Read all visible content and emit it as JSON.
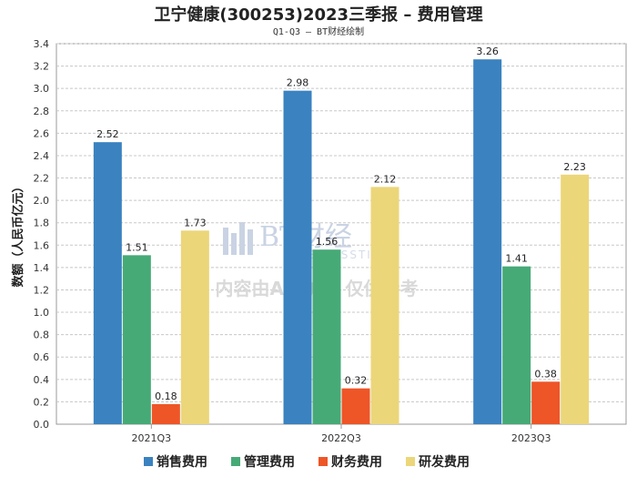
{
  "chart_data": {
    "type": "bar",
    "title": "卫宁健康(300253)2023三季报 – 费用管理",
    "subtitle": "Q1-Q3 – BT财经绘制",
    "ylabel": "数额（人民币亿元）",
    "xlabel": "",
    "ylim": [
      0,
      3.4
    ],
    "yticks": [
      "0.0",
      "0.2",
      "0.4",
      "0.6",
      "0.8",
      "1.0",
      "1.2",
      "1.4",
      "1.6",
      "1.8",
      "2.0",
      "2.2",
      "2.4",
      "2.6",
      "2.8",
      "3.0",
      "3.2",
      "3.4"
    ],
    "grid": true,
    "legend_position": "bottom",
    "categories": [
      "2021Q3",
      "2022Q3",
      "2023Q3"
    ],
    "series": [
      {
        "name": "销售费用",
        "color": "#3a82c0",
        "values": [
          2.52,
          2.98,
          3.26
        ],
        "labels": [
          "2.52",
          "2.98",
          "3.26"
        ]
      },
      {
        "name": "管理费用",
        "color": "#46aa77",
        "values": [
          1.51,
          1.56,
          1.41
        ],
        "labels": [
          "1.51",
          "1.56",
          "1.41"
        ]
      },
      {
        "name": "财务费用",
        "color": "#ee5527",
        "values": [
          0.18,
          0.32,
          0.38
        ],
        "labels": [
          "0.18",
          "0.32",
          "0.38"
        ]
      },
      {
        "name": "研发费用",
        "color": "#ecd67a",
        "values": [
          1.73,
          2.12,
          2.23
        ],
        "labels": [
          "1.73",
          "2.12",
          "2.23"
        ]
      }
    ]
  },
  "watermark": {
    "brand": "BT财经",
    "brand_sub": "BUSINESSTIMES",
    "notice": "内容由AI生成，仅供参考"
  }
}
